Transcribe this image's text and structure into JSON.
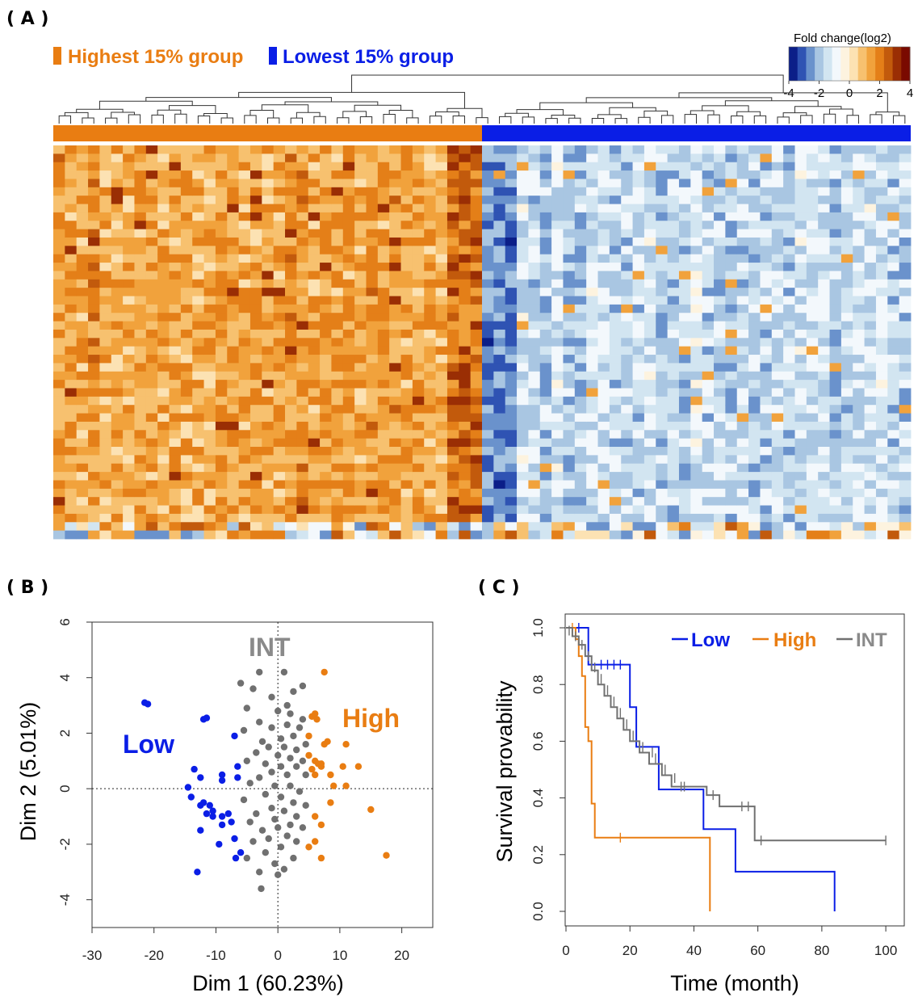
{
  "panels": {
    "a_label": "( A )",
    "b_label": "( B )",
    "c_label": "( C )"
  },
  "colors": {
    "high": "#e97d12",
    "low": "#0a1ee6",
    "int": "#707070",
    "low_dark": "#0b1e88",
    "high_dark": "#7a0a00"
  },
  "chart_data": [
    {
      "type": "heatmap",
      "title": "",
      "legend": [
        {
          "label": "Highest 15% group",
          "color": "#e97d12"
        },
        {
          "label": "Lowest 15% group",
          "color": "#0a1ee6"
        }
      ],
      "colorbar": {
        "title": "Fold change(log2)",
        "ticks": [
          "-4",
          "-2",
          "0",
          "2",
          "4"
        ],
        "range": [
          -4,
          4
        ],
        "colors": [
          "#0b1e88",
          "#2f53b3",
          "#6a92cc",
          "#a9c6e2",
          "#d2e5f1",
          "#f3f8fc",
          "#fdf3df",
          "#fce2b3",
          "#f7c16f",
          "#f1a23c",
          "#e47f18",
          "#c25a0c",
          "#9a2e04",
          "#7a0a00"
        ]
      },
      "groups": [
        {
          "name": "Highest 15% group",
          "samples": 37
        },
        {
          "name": "Lowest 15% group",
          "samples": 37
        }
      ],
      "rows": 47,
      "dendrogram": "hierarchical clustering of samples"
    },
    {
      "type": "scatter",
      "xlabel": "Dim 1 (60.23%)",
      "ylabel": "Dim 2 (5.01%)",
      "xlim": [
        -30,
        25
      ],
      "ylim": [
        -5,
        6
      ],
      "xticks": [
        "-30",
        "-20",
        "-10",
        "0",
        "10",
        "20"
      ],
      "yticks": [
        "-4",
        "-2",
        "0",
        "2",
        "4",
        "6"
      ],
      "reference_lines": {
        "x": 0,
        "y": 0
      },
      "group_labels": [
        {
          "text": "INT",
          "color": "#8a8a8a"
        },
        {
          "text": "High",
          "color": "#e97d12"
        },
        {
          "text": "Low",
          "color": "#0a1ee6"
        }
      ],
      "series": [
        {
          "name": "Low",
          "color": "#0a1ee6",
          "points": [
            [
              -21.5,
              3.1
            ],
            [
              -21,
              3.05
            ],
            [
              -12,
              2.5
            ],
            [
              -11.5,
              2.55
            ],
            [
              -7,
              1.9
            ],
            [
              -6.5,
              0.8
            ],
            [
              -13.5,
              0.7
            ],
            [
              -12.5,
              0.4
            ],
            [
              -9,
              0.5
            ],
            [
              -9,
              0.3
            ],
            [
              -6.5,
              0.4
            ],
            [
              -14.5,
              0.05
            ],
            [
              -14,
              -0.3
            ],
            [
              -12.5,
              -0.6
            ],
            [
              -12,
              -0.5
            ],
            [
              -11.5,
              -0.9
            ],
            [
              -11,
              -0.6
            ],
            [
              -10.5,
              -0.8
            ],
            [
              -10.5,
              -1
            ],
            [
              -9,
              -1
            ],
            [
              -8,
              -0.9
            ],
            [
              -12.5,
              -1.5
            ],
            [
              -9,
              -1.3
            ],
            [
              -7.5,
              -1.2
            ],
            [
              -7,
              -1.8
            ],
            [
              -9.5,
              -2
            ],
            [
              -6,
              -2.3
            ],
            [
              -6.8,
              -2.5
            ],
            [
              -13,
              -3
            ]
          ]
        },
        {
          "name": "High",
          "color": "#e97d12",
          "points": [
            [
              7.5,
              4.2
            ],
            [
              5.5,
              2.6
            ],
            [
              6,
              2.7
            ],
            [
              6.3,
              2.5
            ],
            [
              5,
              1.9
            ],
            [
              7.5,
              1.6
            ],
            [
              8,
              1.7
            ],
            [
              11,
              1.6
            ],
            [
              5,
              1.2
            ],
            [
              6,
              1
            ],
            [
              6.5,
              0.9
            ],
            [
              7,
              0.8
            ],
            [
              5.5,
              0.7
            ],
            [
              6,
              0.5
            ],
            [
              7,
              0.9
            ],
            [
              10.5,
              0.8
            ],
            [
              13,
              0.8
            ],
            [
              8.5,
              0.5
            ],
            [
              11,
              0.1
            ],
            [
              9,
              0.1
            ],
            [
              8.5,
              -0.5
            ],
            [
              6,
              -1
            ],
            [
              7,
              -1.3
            ],
            [
              15,
              -0.75
            ],
            [
              6,
              -1.9
            ],
            [
              5,
              -2.1
            ],
            [
              7,
              -2.5
            ],
            [
              17.5,
              -2.4
            ]
          ]
        },
        {
          "name": "INT",
          "color": "#707070",
          "points": [
            [
              -3,
              4.2
            ],
            [
              1,
              4.2
            ],
            [
              -6,
              3.8
            ],
            [
              -4,
              3.6
            ],
            [
              4,
              3.7
            ],
            [
              2.5,
              3.5
            ],
            [
              -1,
              3.3
            ],
            [
              1.5,
              3
            ],
            [
              -5,
              2.9
            ],
            [
              0,
              2.8
            ],
            [
              2,
              2.7
            ],
            [
              4,
              2.5
            ],
            [
              -3,
              2.4
            ],
            [
              -1,
              2.2
            ],
            [
              1.5,
              2.3
            ],
            [
              3.5,
              2.2
            ],
            [
              -5.5,
              2.1
            ],
            [
              2.5,
              1.9
            ],
            [
              0.5,
              1.8
            ],
            [
              -2.5,
              1.7
            ],
            [
              4.5,
              1.6
            ],
            [
              -1.5,
              1.5
            ],
            [
              1,
              1.5
            ],
            [
              3,
              1.4
            ],
            [
              -3.5,
              1.3
            ],
            [
              0,
              1.2
            ],
            [
              2,
              1.1
            ],
            [
              4,
              1
            ],
            [
              -5,
              1
            ],
            [
              -2,
              0.9
            ],
            [
              0.5,
              0.8
            ],
            [
              3,
              0.8
            ],
            [
              -1,
              0.6
            ],
            [
              1.5,
              0.5
            ],
            [
              -3,
              0.4
            ],
            [
              4.5,
              0.5
            ],
            [
              -4.5,
              0.2
            ],
            [
              -0.5,
              0.1
            ],
            [
              2,
              0.1
            ],
            [
              3.5,
              -0.1
            ],
            [
              -2,
              -0.2
            ],
            [
              0.5,
              -0.3
            ],
            [
              -5.5,
              -0.4
            ],
            [
              2.5,
              -0.5
            ],
            [
              4.5,
              -0.6
            ],
            [
              -1,
              -0.7
            ],
            [
              1,
              -0.8
            ],
            [
              -3.5,
              -0.9
            ],
            [
              3,
              -1
            ],
            [
              -0.5,
              -1.1
            ],
            [
              -4.5,
              -1.2
            ],
            [
              2,
              -1.3
            ],
            [
              0,
              -1.4
            ],
            [
              -2.5,
              -1.5
            ],
            [
              4,
              -1.4
            ],
            [
              1.5,
              -1.7
            ],
            [
              -1.5,
              -1.8
            ],
            [
              -4,
              -1.9
            ],
            [
              3,
              -1.9
            ],
            [
              0.5,
              -2.1
            ],
            [
              -2,
              -2.3
            ],
            [
              2.5,
              -2.5
            ],
            [
              -5,
              -2.5
            ],
            [
              -0.5,
              -2.7
            ],
            [
              1,
              -2.9
            ],
            [
              -3,
              -3
            ],
            [
              0,
              -3.1
            ],
            [
              -2.7,
              -3.6
            ]
          ]
        }
      ]
    },
    {
      "type": "line",
      "xlabel": "Time (month)",
      "ylabel": "Survival provability",
      "xlim": [
        0,
        103
      ],
      "ylim": [
        0,
        1.02
      ],
      "xticks": [
        "0",
        "20",
        "40",
        "60",
        "80",
        "100"
      ],
      "yticks": [
        "0.0",
        "0.2",
        "0.4",
        "0.6",
        "0.8",
        "1.0"
      ],
      "legend_position": "top-right",
      "series": [
        {
          "name": "Low",
          "color": "#0a1ee6",
          "steps": [
            [
              0,
              1
            ],
            [
              7,
              1
            ],
            [
              7,
              0.87
            ],
            [
              20,
              0.87
            ],
            [
              20,
              0.72
            ],
            [
              22,
              0.72
            ],
            [
              22,
              0.58
            ],
            [
              29,
              0.58
            ],
            [
              29,
              0.43
            ],
            [
              43,
              0.43
            ],
            [
              43,
              0.29
            ],
            [
              53,
              0.29
            ],
            [
              53,
              0.14
            ],
            [
              84,
              0.14
            ],
            [
              84,
              0
            ]
          ],
          "censor": [
            [
              4,
              1
            ],
            [
              8,
              0.87
            ],
            [
              11,
              0.87
            ],
            [
              13,
              0.87
            ],
            [
              15,
              0.87
            ],
            [
              17,
              0.87
            ]
          ]
        },
        {
          "name": "High",
          "color": "#e97d12",
          "steps": [
            [
              0,
              1
            ],
            [
              3,
              1
            ],
            [
              3,
              0.96
            ],
            [
              4,
              0.96
            ],
            [
              4,
              0.9
            ],
            [
              5,
              0.9
            ],
            [
              5,
              0.83
            ],
            [
              6,
              0.83
            ],
            [
              6,
              0.65
            ],
            [
              7,
              0.65
            ],
            [
              7,
              0.6
            ],
            [
              8,
              0.6
            ],
            [
              8,
              0.38
            ],
            [
              9,
              0.38
            ],
            [
              9,
              0.26
            ],
            [
              45,
              0.26
            ],
            [
              45,
              0
            ]
          ],
          "censor": [
            [
              2,
              1
            ],
            [
              17,
              0.26
            ]
          ]
        },
        {
          "name": "INT",
          "color": "#707070",
          "steps": [
            [
              0,
              1
            ],
            [
              2,
              1
            ],
            [
              2,
              0.97
            ],
            [
              4,
              0.97
            ],
            [
              4,
              0.94
            ],
            [
              6,
              0.94
            ],
            [
              6,
              0.9
            ],
            [
              8,
              0.9
            ],
            [
              8,
              0.85
            ],
            [
              10,
              0.85
            ],
            [
              10,
              0.8
            ],
            [
              12,
              0.8
            ],
            [
              12,
              0.76
            ],
            [
              14,
              0.76
            ],
            [
              14,
              0.72
            ],
            [
              16,
              0.72
            ],
            [
              16,
              0.68
            ],
            [
              18,
              0.68
            ],
            [
              18,
              0.64
            ],
            [
              20,
              0.64
            ],
            [
              20,
              0.6
            ],
            [
              23,
              0.6
            ],
            [
              23,
              0.56
            ],
            [
              26,
              0.56
            ],
            [
              26,
              0.52
            ],
            [
              30,
              0.52
            ],
            [
              30,
              0.48
            ],
            [
              33,
              0.48
            ],
            [
              33,
              0.44
            ],
            [
              44,
              0.44
            ],
            [
              44,
              0.41
            ],
            [
              48,
              0.41
            ],
            [
              48,
              0.37
            ],
            [
              59,
              0.37
            ],
            [
              59,
              0.25
            ],
            [
              100,
              0.25
            ]
          ],
          "censor": [
            [
              1,
              0.99
            ],
            [
              3,
              0.97
            ],
            [
              5,
              0.94
            ],
            [
              7,
              0.9
            ],
            [
              9,
              0.86
            ],
            [
              11,
              0.82
            ],
            [
              13,
              0.78
            ],
            [
              15,
              0.74
            ],
            [
              17,
              0.7
            ],
            [
              19,
              0.66
            ],
            [
              21,
              0.62
            ],
            [
              24,
              0.58
            ],
            [
              27,
              0.56
            ],
            [
              28,
              0.54
            ],
            [
              31,
              0.5
            ],
            [
              34,
              0.47
            ],
            [
              36,
              0.44
            ],
            [
              37,
              0.44
            ],
            [
              46,
              0.41
            ],
            [
              55,
              0.37
            ],
            [
              57,
              0.37
            ],
            [
              61,
              0.25
            ],
            [
              100,
              0.25
            ]
          ]
        }
      ]
    }
  ]
}
